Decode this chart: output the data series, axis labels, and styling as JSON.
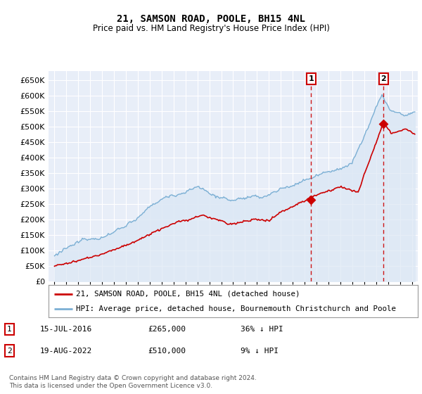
{
  "title": "21, SAMSON ROAD, POOLE, BH15 4NL",
  "subtitle": "Price paid vs. HM Land Registry's House Price Index (HPI)",
  "hpi_label": "HPI: Average price, detached house, Bournemouth Christchurch and Poole",
  "property_label": "21, SAMSON ROAD, POOLE, BH15 4NL (detached house)",
  "hpi_color": "#7bafd4",
  "hpi_fill": "#dce8f5",
  "property_color": "#cc0000",
  "annotation1_date": "15-JUL-2016",
  "annotation1_price": "£265,000",
  "annotation1_pct": "36% ↓ HPI",
  "annotation2_date": "19-AUG-2022",
  "annotation2_price": "£510,000",
  "annotation2_pct": "9% ↓ HPI",
  "sale1_year": 2016.542,
  "sale1_price": 265000,
  "sale2_year": 2022.63,
  "sale2_price": 510000,
  "ylim": [
    0,
    680000
  ],
  "xlim_left": 1994.5,
  "xlim_right": 2025.5,
  "yticks": [
    0,
    50000,
    100000,
    150000,
    200000,
    250000,
    300000,
    350000,
    400000,
    450000,
    500000,
    550000,
    600000,
    650000
  ],
  "footer": "Contains HM Land Registry data © Crown copyright and database right 2024.\nThis data is licensed under the Open Government Licence v3.0.",
  "bg_color": "#e8eef8"
}
